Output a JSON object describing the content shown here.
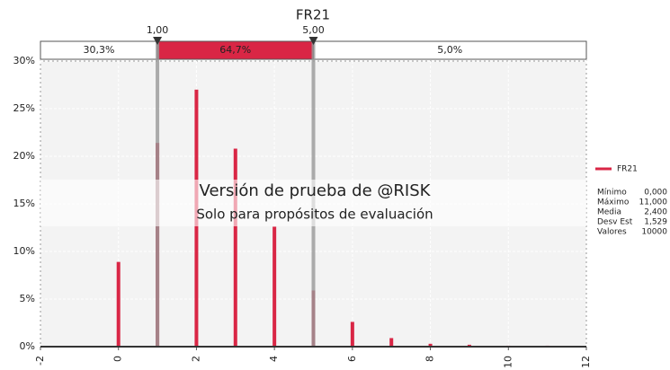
{
  "chart_data": {
    "type": "bar",
    "title": "FR21",
    "x": [
      0,
      1,
      2,
      3,
      4,
      5,
      6,
      7,
      8,
      9,
      10,
      11
    ],
    "series": [
      {
        "name": "FR21",
        "color": "#d92645",
        "values": [
          8.9,
          21.4,
          27.0,
          20.8,
          12.6,
          5.9,
          2.6,
          0.9,
          0.3,
          0.2,
          0.1,
          0.1
        ]
      }
    ],
    "xlim": [
      -2,
      12
    ],
    "xticks": [
      -2,
      0,
      2,
      4,
      6,
      8,
      10,
      12
    ],
    "ylim": [
      0,
      30
    ],
    "yticks": [
      {
        "value": 0,
        "label": "0%"
      },
      {
        "value": 5,
        "label": "5%"
      },
      {
        "value": 10,
        "label": "10%"
      },
      {
        "value": 15,
        "label": "15%"
      },
      {
        "value": 20,
        "label": "20%"
      },
      {
        "value": 25,
        "label": "25%"
      },
      {
        "value": 30,
        "label": "30%"
      }
    ],
    "grid": true,
    "delimiters": [
      {
        "value": 1,
        "label": "1,00"
      },
      {
        "value": 5,
        "label": "5,00"
      }
    ],
    "regions": [
      "30,3%",
      "64,7%",
      "5,0%"
    ],
    "legend_position": "right",
    "stats": [
      {
        "label": "Mínimo",
        "value": "0,000"
      },
      {
        "label": "Máximo",
        "value": "11,000"
      },
      {
        "label": "Media",
        "value": "2,400"
      },
      {
        "label": "Desv Est",
        "value": "1,529"
      },
      {
        "label": "Valores",
        "value": "10000"
      }
    ],
    "watermark": [
      "Versión de prueba de @RISK",
      "Solo para propósitos de evaluación"
    ]
  }
}
